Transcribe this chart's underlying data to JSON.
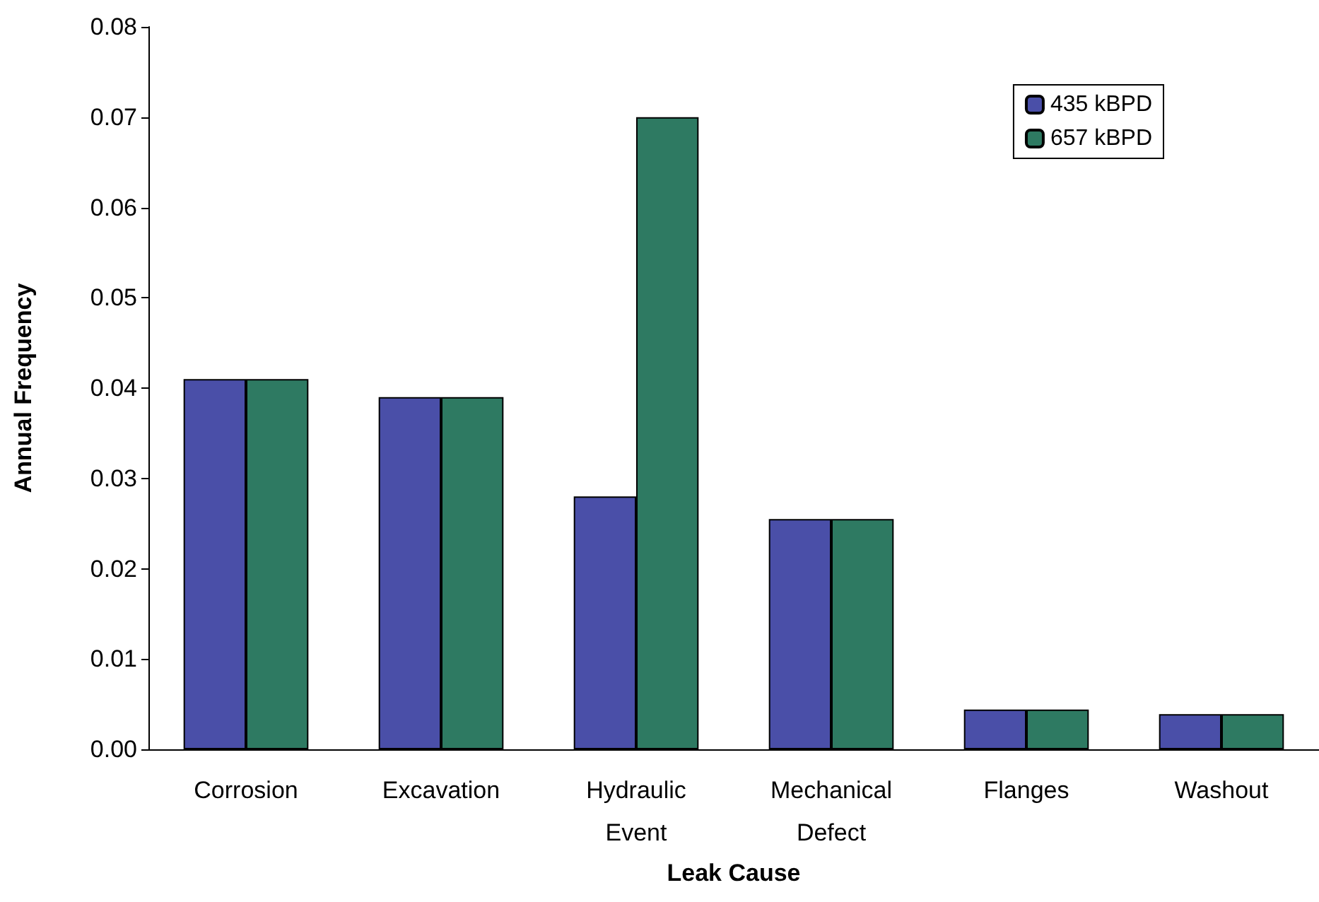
{
  "chart_data": {
    "type": "bar",
    "xlabel": "Leak Cause",
    "ylabel": "Annual Frequency",
    "categories": [
      "Corrosion",
      "Excavation",
      "Hydraulic\nEvent",
      "Mechanical\nDefect",
      "Flanges",
      "Washout"
    ],
    "series": [
      {
        "name": "435 kBPD",
        "color": "#4a4fa8",
        "values": [
          0.041,
          0.039,
          0.028,
          0.0255,
          0.0044,
          0.0039
        ]
      },
      {
        "name": "657 kBPD",
        "color": "#2e7a62",
        "values": [
          0.041,
          0.039,
          0.07,
          0.0255,
          0.0044,
          0.0039
        ]
      }
    ],
    "ylim": [
      0,
      0.08
    ],
    "yticks": [
      {
        "value": 0,
        "label": "0.00"
      },
      {
        "value": 0.01,
        "label": "0.01"
      },
      {
        "value": 0.02,
        "label": "0.02"
      },
      {
        "value": 0.03,
        "label": "0.03"
      },
      {
        "value": 0.04,
        "label": "0.04"
      },
      {
        "value": 0.05,
        "label": "0.05"
      },
      {
        "value": 0.06,
        "label": "0.06"
      },
      {
        "value": 0.07,
        "label": "0.07"
      },
      {
        "value": 0.08,
        "label": "0.08"
      }
    ],
    "grid": false,
    "legend": "top right"
  }
}
